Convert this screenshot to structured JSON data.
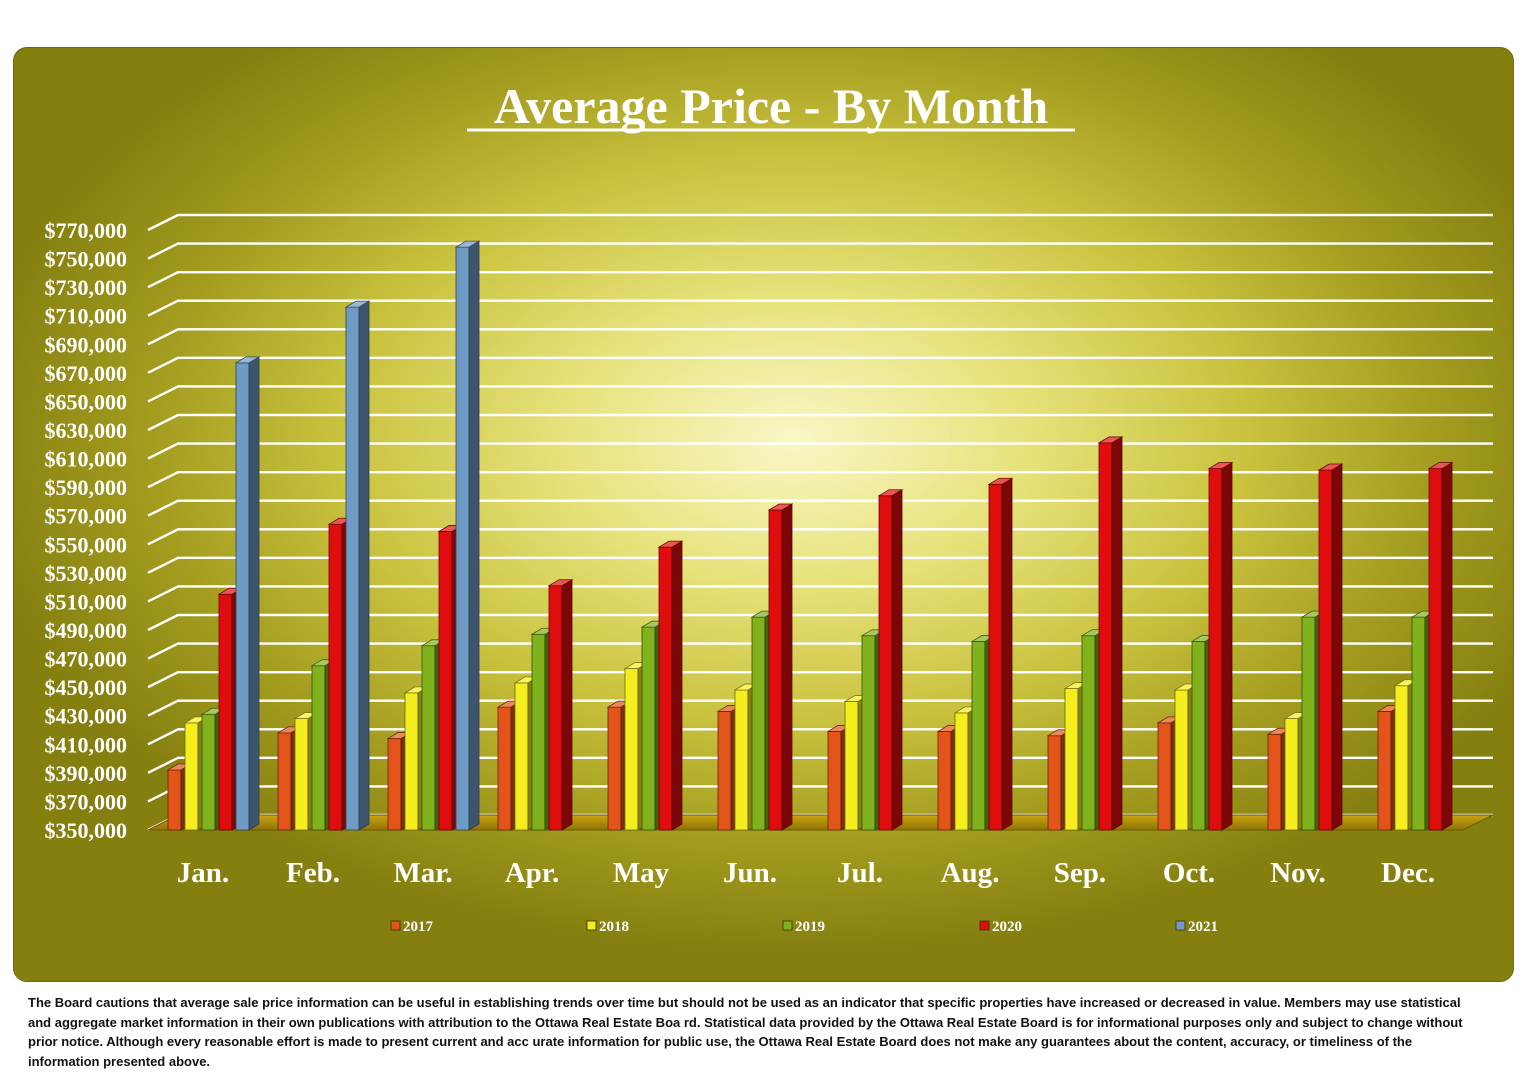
{
  "chart_data": {
    "type": "bar",
    "title": "Average Price - By Month",
    "xlabel": "",
    "ylabel": "",
    "categories": [
      "Jan.",
      "Feb.",
      "Mar.",
      "Apr.",
      "May",
      "Jun.",
      "Jul.",
      "Aug.",
      "Sep.",
      "Oct.",
      "Nov.",
      "Dec."
    ],
    "y_ticks": [
      "$350,000",
      "$370,000",
      "$390,000",
      "$410,000",
      "$430,000",
      "$450,000",
      "$470,000",
      "$490,000",
      "$510,000",
      "$530,000",
      "$550,000",
      "$570,000",
      "$590,000",
      "$610,000",
      "$630,000",
      "$650,000",
      "$670,000",
      "$690,000",
      "$710,000",
      "$730,000",
      "$750,000",
      "$770,000"
    ],
    "ylim": [
      350000,
      770000
    ],
    "grid": true,
    "legend_position": "bottom",
    "series": [
      {
        "name": "2017",
        "color": "#e2541a",
        "values": [
          392000,
          418000,
          414000,
          436000,
          436000,
          433000,
          419000,
          419000,
          416000,
          425000,
          417000,
          433000
        ]
      },
      {
        "name": "2018",
        "color": "#f4ee1e",
        "values": [
          425000,
          428000,
          446000,
          453000,
          463000,
          448000,
          440000,
          432000,
          449000,
          448000,
          428000,
          451000
        ]
      },
      {
        "name": "2019",
        "color": "#7fb21c",
        "values": [
          431000,
          465000,
          479000,
          487000,
          492000,
          499000,
          486000,
          482000,
          486000,
          482000,
          499000,
          499000
        ]
      },
      {
        "name": "2020",
        "color": "#df0d0d",
        "values": [
          515000,
          564000,
          559000,
          521000,
          548000,
          574000,
          584000,
          592000,
          621000,
          603000,
          602000,
          603000
        ]
      },
      {
        "name": "2021",
        "color": "#6f9ac4",
        "values": [
          677000,
          716000,
          758000,
          null,
          null,
          null,
          null,
          null,
          null,
          null,
          null,
          null
        ]
      }
    ]
  },
  "footnote": "The Board cautions that average sale price information can be useful in establishing trends over time but should not be used  as an indicator that specific properties have increased or decreased in value.   Members may use statistical and aggregate market information in their own publications with attribution to the Ottawa Real Estate Boa rd. Statistical data provided by the Ottawa Real Estate Board is for informational purposes only and subject to change without prior notice. Although every reasonable effort is made to present current and acc urate information for public use, the Ottawa Real Estate Board does not make any guarantees about the content, accuracy, or timeliness of the information presented above."
}
